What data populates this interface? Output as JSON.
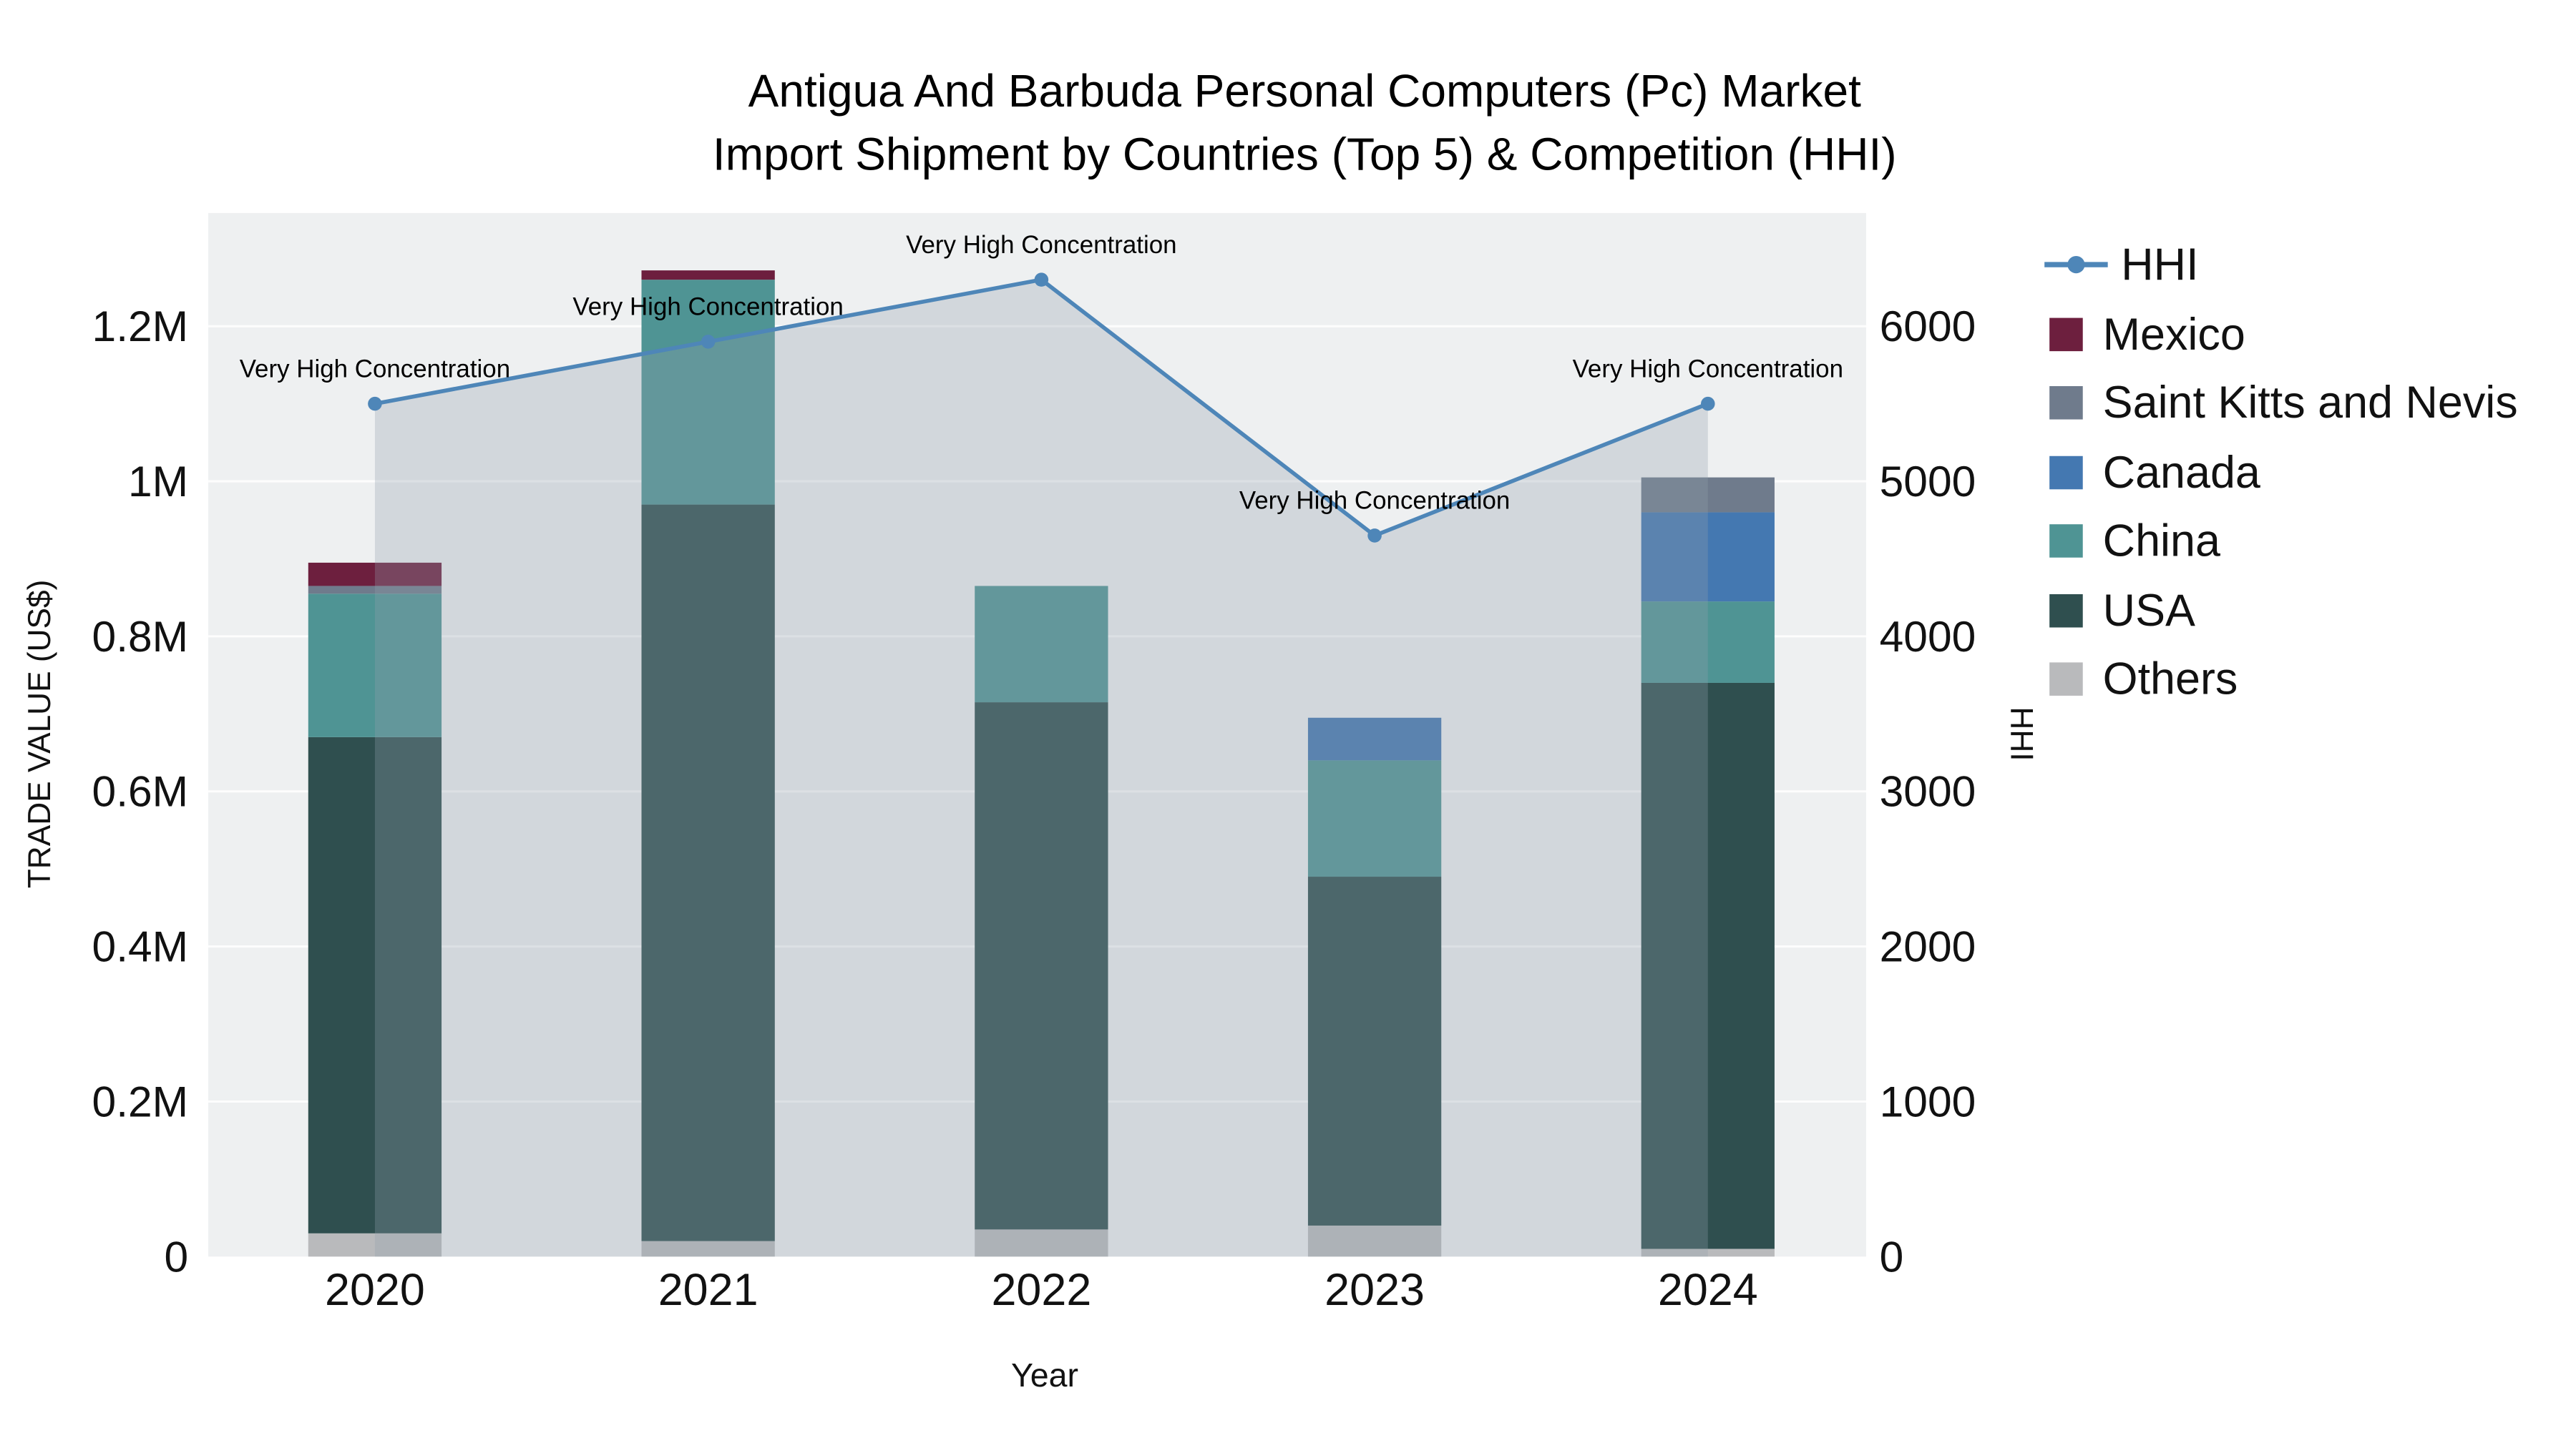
{
  "title": {
    "line1": "Antigua And Barbuda Personal Computers (Pc) Market",
    "line2": "Import Shipment by Countries (Top 5) & Competition (HHI)"
  },
  "axes": {
    "x_label": "Year",
    "y_left_label": "TRADE VALUE (US$)",
    "y_right_label": "HHI",
    "y_left_ticks": {
      "labels": [
        "0",
        "0.2M",
        "0.4M",
        "0.6M",
        "0.8M",
        "1M",
        "1.2M"
      ],
      "values": [
        0,
        200000,
        400000,
        600000,
        800000,
        1000000,
        1200000
      ]
    },
    "y_right_ticks": {
      "labels": [
        "0",
        "1000",
        "2000",
        "3000",
        "4000",
        "5000",
        "6000"
      ],
      "values": [
        0,
        1000,
        2000,
        3000,
        4000,
        5000,
        6000
      ]
    }
  },
  "chart_data": {
    "type": "bar",
    "subtype": "stacked-bars-with-hhi-line",
    "categories": [
      "2020",
      "2021",
      "2022",
      "2023",
      "2024"
    ],
    "bar_series": [
      {
        "name": "Others",
        "color": "#b9babc",
        "values": [
          30000,
          20000,
          35000,
          40000,
          10000
        ]
      },
      {
        "name": "USA",
        "color": "#2f4f4f",
        "values": [
          640000,
          950000,
          680000,
          450000,
          730000
        ]
      },
      {
        "name": "China",
        "color": "#4f9494",
        "values": [
          185000,
          290000,
          150000,
          150000,
          105000
        ]
      },
      {
        "name": "Canada",
        "color": "#4478b1",
        "values": [
          0,
          0,
          0,
          55000,
          115000
        ]
      },
      {
        "name": "Saint Kitts and Nevis",
        "color": "#6f7b8c",
        "values": [
          10000,
          0,
          0,
          0,
          45000
        ]
      },
      {
        "name": "Mexico",
        "color": "#6d1f3e",
        "values": [
          30000,
          12000,
          0,
          0,
          0
        ]
      }
    ],
    "line_series": {
      "name": "HHI",
      "color": "#4e86b8",
      "axis": "right",
      "values": [
        5500,
        5900,
        6300,
        4650,
        5500
      ]
    },
    "annotations": [
      "Very High Concentration",
      "Very High Concentration",
      "Very High Concentration",
      "Very High Concentration",
      "Very High Concentration"
    ],
    "xlabel": "Year",
    "ylabel_left": "TRADE VALUE (US$)",
    "ylabel_right": "HHI",
    "ylim_left": [
      0,
      1346000
    ],
    "ylim_right": [
      0,
      6730
    ],
    "grid": true,
    "legend_position": "right",
    "area_fill_under_line": true
  },
  "colors": {
    "plot_background": "#eef0f1",
    "area_fill": "rgba(146,158,173,0.30)",
    "gridline": "#ffffff"
  }
}
